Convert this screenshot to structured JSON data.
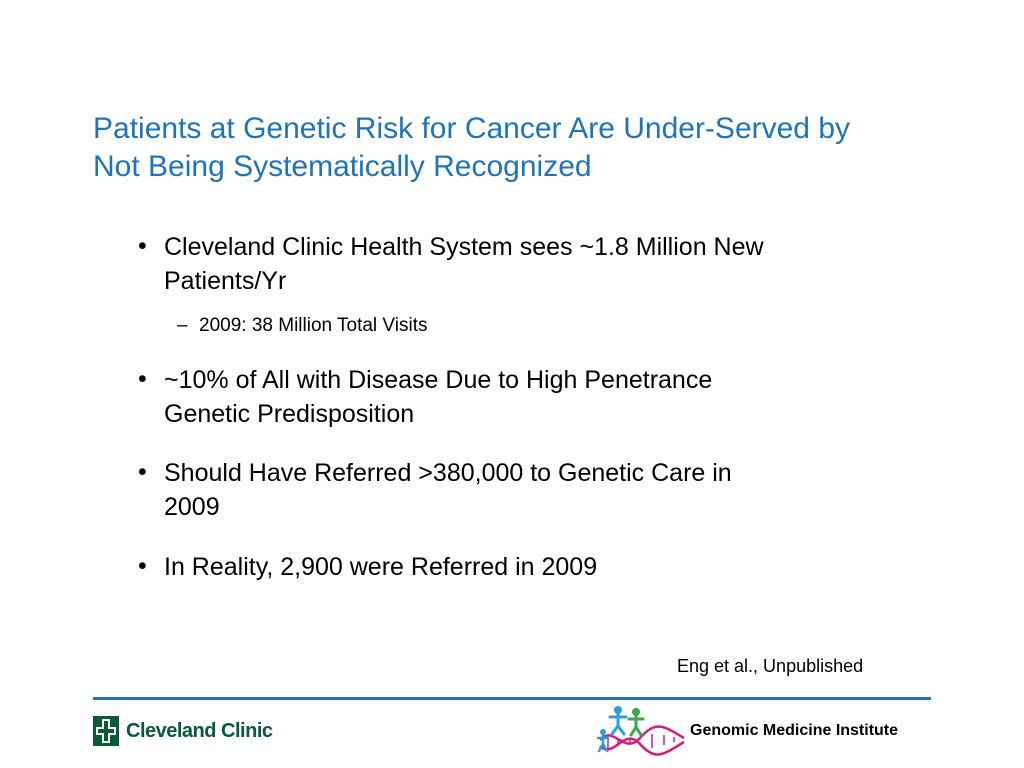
{
  "slide": {
    "title_lines": [
      "Patients at Genetic Risk for Cancer Are Under-Served by",
      "Not Being Systematically Recognized"
    ],
    "bullets": [
      {
        "lines": [
          "Cleveland Clinic Health System sees ~1.8 Million New",
          "Patients/Yr"
        ]
      },
      {
        "lines": [
          "~10% of All with Disease Due to High Penetrance",
          "Genetic Predisposition"
        ]
      },
      {
        "lines": [
          "Should Have Referred >380,000 to Genetic Care in",
          "2009"
        ]
      },
      {
        "lines": [
          "In Reality, 2,900 were Referred in 2009"
        ]
      }
    ],
    "sub_bullet": {
      "text": "2009: 38 Million Total Visits"
    },
    "bullet_symbol": "•",
    "dash_symbol": "–",
    "citation": "Eng et al., Unpublished"
  },
  "footer": {
    "left_logo_text": "Cleveland Clinic",
    "right_logo_text": "Genomic Medicine Institute",
    "left_logo_icon": "cleveland-clinic-cross-icon",
    "right_logo_icon": "genomic-figures-dna-icon"
  },
  "colors": {
    "title": "#1f74b8",
    "rule": "#1f74b8",
    "cleveland_green": "#0a5a36",
    "dna_pink": "#d81b7a",
    "figure_blue": "#2b9fd8",
    "figure_green": "#3aa84a"
  }
}
